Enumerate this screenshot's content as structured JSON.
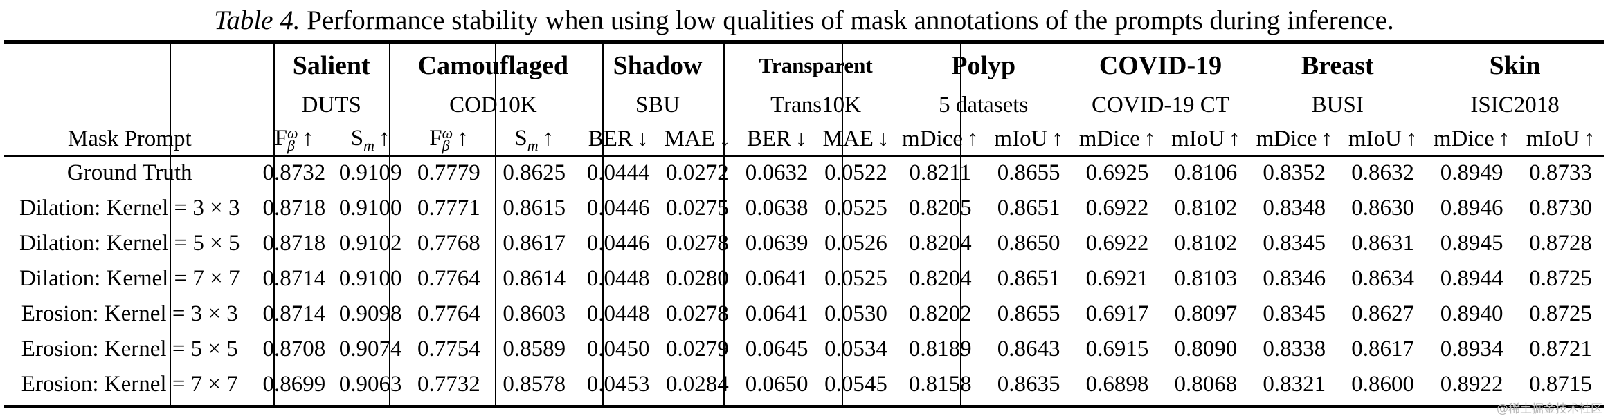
{
  "caption": {
    "label": "Table 4.",
    "text": "Performance stability when using low qualities of mask annotations of the prompts during inference."
  },
  "header": {
    "row_label": "Mask Prompt",
    "groups": [
      {
        "name": "Salient",
        "dataset": "DUTS",
        "metrics": [
          {
            "base": "F",
            "sub": "β",
            "sup": "ω",
            "arrow": "↑"
          },
          {
            "base": "S",
            "sub": "m",
            "sup": "",
            "arrow": "↑"
          }
        ]
      },
      {
        "name": "Camouflaged",
        "dataset": "COD10K",
        "metrics": [
          {
            "base": "F",
            "sub": "β",
            "sup": "ω",
            "arrow": "↑"
          },
          {
            "base": "S",
            "sub": "m",
            "sup": "",
            "arrow": "↑"
          }
        ]
      },
      {
        "name": "Shadow",
        "dataset": "SBU",
        "metrics": [
          {
            "base": "BER",
            "sub": "",
            "sup": "",
            "arrow": "↓"
          },
          {
            "base": "MAE",
            "sub": "",
            "sup": "",
            "arrow": "↓"
          }
        ]
      },
      {
        "name": "Transparent",
        "dataset": "Trans10K",
        "metrics": [
          {
            "base": "BER",
            "sub": "",
            "sup": "",
            "arrow": "↓"
          },
          {
            "base": "MAE",
            "sub": "",
            "sup": "",
            "arrow": "↓"
          }
        ]
      },
      {
        "name": "Polyp",
        "dataset": "5 datasets",
        "metrics": [
          {
            "base": "mDice",
            "sub": "",
            "sup": "",
            "arrow": "↑"
          },
          {
            "base": "mIoU",
            "sub": "",
            "sup": "",
            "arrow": "↑"
          }
        ]
      },
      {
        "name": "COVID-19",
        "dataset": "COVID-19 CT",
        "metrics": [
          {
            "base": "mDice",
            "sub": "",
            "sup": "",
            "arrow": "↑"
          },
          {
            "base": "mIoU",
            "sub": "",
            "sup": "",
            "arrow": "↑"
          }
        ]
      },
      {
        "name": "Breast",
        "dataset": "BUSI",
        "metrics": [
          {
            "base": "mDice",
            "sub": "",
            "sup": "",
            "arrow": "↑"
          },
          {
            "base": "mIoU",
            "sub": "",
            "sup": "",
            "arrow": "↑"
          }
        ]
      },
      {
        "name": "Skin",
        "dataset": "ISIC2018",
        "metrics": [
          {
            "base": "mDice",
            "sub": "",
            "sup": "",
            "arrow": "↑"
          },
          {
            "base": "mIoU",
            "sub": "",
            "sup": "",
            "arrow": "↑"
          }
        ]
      }
    ]
  },
  "rows": [
    {
      "label": "Ground Truth",
      "values": [
        "0.8732",
        "0.9109",
        "0.7779",
        "0.8625",
        "0.0444",
        "0.0272",
        "0.0632",
        "0.0522",
        "0.8211",
        "0.8655",
        "0.6925",
        "0.8106",
        "0.8352",
        "0.8632",
        "0.8949",
        "0.8733"
      ]
    },
    {
      "label": "Dilation: Kernel = 3 × 3",
      "values": [
        "0.8718",
        "0.9100",
        "0.7771",
        "0.8615",
        "0.0446",
        "0.0275",
        "0.0638",
        "0.0525",
        "0.8205",
        "0.8651",
        "0.6922",
        "0.8102",
        "0.8348",
        "0.8630",
        "0.8946",
        "0.8730"
      ]
    },
    {
      "label": "Dilation: Kernel = 5 × 5",
      "values": [
        "0.8718",
        "0.9102",
        "0.7768",
        "0.8617",
        "0.0446",
        "0.0278",
        "0.0639",
        "0.0526",
        "0.8204",
        "0.8650",
        "0.6922",
        "0.8102",
        "0.8345",
        "0.8631",
        "0.8945",
        "0.8728"
      ]
    },
    {
      "label": "Dilation: Kernel = 7 × 7",
      "values": [
        "0.8714",
        "0.9100",
        "0.7764",
        "0.8614",
        "0.0448",
        "0.0280",
        "0.0641",
        "0.0525",
        "0.8204",
        "0.8651",
        "0.6921",
        "0.8103",
        "0.8346",
        "0.8634",
        "0.8944",
        "0.8725"
      ]
    },
    {
      "label": "Erosion: Kernel = 3 × 3",
      "values": [
        "0.8714",
        "0.9098",
        "0.7764",
        "0.8603",
        "0.0448",
        "0.0278",
        "0.0641",
        "0.0530",
        "0.8202",
        "0.8655",
        "0.6917",
        "0.8097",
        "0.8345",
        "0.8627",
        "0.8940",
        "0.8725"
      ]
    },
    {
      "label": "Erosion: Kernel = 5 × 5",
      "values": [
        "0.8708",
        "0.9074",
        "0.7754",
        "0.8589",
        "0.0450",
        "0.0279",
        "0.0645",
        "0.0534",
        "0.8189",
        "0.8643",
        "0.6915",
        "0.8090",
        "0.8338",
        "0.8617",
        "0.8934",
        "0.8721"
      ]
    },
    {
      "label": "Erosion: Kernel = 7 × 7",
      "values": [
        "0.8699",
        "0.9063",
        "0.7732",
        "0.8578",
        "0.0453",
        "0.0284",
        "0.0650",
        "0.0545",
        "0.8158",
        "0.8635",
        "0.6898",
        "0.8068",
        "0.8321",
        "0.8600",
        "0.8922",
        "0.8715"
      ]
    }
  ],
  "watermark": "@稀土掘金技术社区"
}
